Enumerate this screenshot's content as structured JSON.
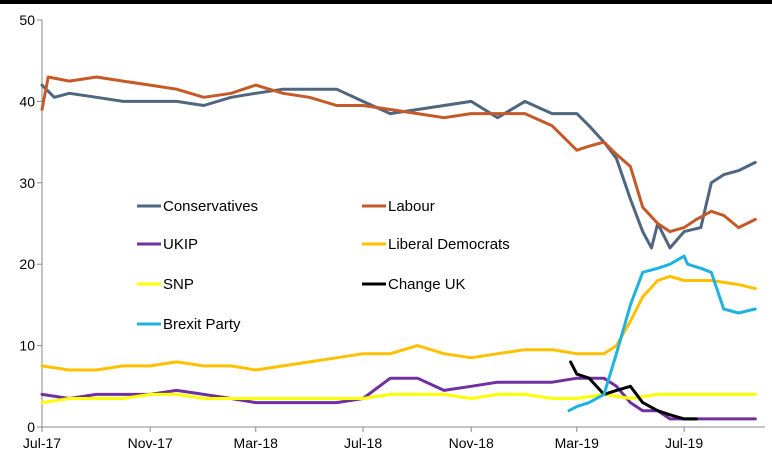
{
  "chart_data": {
    "type": "line",
    "title": "",
    "xlabel": "",
    "ylabel": "",
    "ylim": [
      0,
      50
    ],
    "yticks": [
      0,
      10,
      20,
      30,
      40,
      50
    ],
    "xlim": [
      "2017-07",
      "2019-10"
    ],
    "xtick_labels": [
      {
        "date": "2017-07",
        "label": "Jul-17"
      },
      {
        "date": "2017-11",
        "label": "Nov-17"
      },
      {
        "date": "2018-03",
        "label": "Mar-18"
      },
      {
        "date": "2018-07",
        "label": "Jul-18"
      },
      {
        "date": "2018-11",
        "label": "Nov-18"
      },
      {
        "date": "2019-03",
        "label": "Mar-19"
      },
      {
        "date": "2019-07",
        "label": "Jul-19"
      }
    ],
    "grid": false,
    "legend_position": "center",
    "series": [
      {
        "name": "Conservatives",
        "color": "#4F6680",
        "points": [
          [
            "2017-07-01",
            42
          ],
          [
            "2017-07-15",
            40.5
          ],
          [
            "2017-08-01",
            41
          ],
          [
            "2017-09-01",
            40.5
          ],
          [
            "2017-10-01",
            40
          ],
          [
            "2017-11-01",
            40
          ],
          [
            "2017-12-01",
            40
          ],
          [
            "2018-01-01",
            39.5
          ],
          [
            "2018-02-01",
            40.5
          ],
          [
            "2018-03-01",
            41
          ],
          [
            "2018-04-01",
            41.5
          ],
          [
            "2018-05-01",
            41.5
          ],
          [
            "2018-06-01",
            41.5
          ],
          [
            "2018-07-01",
            40
          ],
          [
            "2018-08-01",
            38.5
          ],
          [
            "2018-09-01",
            39
          ],
          [
            "2018-10-01",
            39.5
          ],
          [
            "2018-11-01",
            40
          ],
          [
            "2018-12-01",
            38
          ],
          [
            "2019-01-01",
            40
          ],
          [
            "2019-02-01",
            38.5
          ],
          [
            "2019-03-01",
            38.5
          ],
          [
            "2019-03-15",
            37
          ],
          [
            "2019-04-01",
            35
          ],
          [
            "2019-04-15",
            33
          ],
          [
            "2019-05-01",
            28
          ],
          [
            "2019-05-15",
            24
          ],
          [
            "2019-05-25",
            22
          ],
          [
            "2019-06-01",
            25
          ],
          [
            "2019-06-15",
            22
          ],
          [
            "2019-07-01",
            24
          ],
          [
            "2019-07-20",
            24.5
          ],
          [
            "2019-08-01",
            30
          ],
          [
            "2019-08-15",
            31
          ],
          [
            "2019-09-01",
            31.5
          ],
          [
            "2019-09-20",
            32.5
          ]
        ]
      },
      {
        "name": "Labour",
        "color": "#C55A28",
        "points": [
          [
            "2017-07-01",
            39
          ],
          [
            "2017-07-08",
            43
          ],
          [
            "2017-08-01",
            42.5
          ],
          [
            "2017-09-01",
            43
          ],
          [
            "2017-10-01",
            42.5
          ],
          [
            "2017-11-01",
            42
          ],
          [
            "2017-12-01",
            41.5
          ],
          [
            "2018-01-01",
            40.5
          ],
          [
            "2018-02-01",
            41
          ],
          [
            "2018-03-01",
            42
          ],
          [
            "2018-04-01",
            41
          ],
          [
            "2018-05-01",
            40.5
          ],
          [
            "2018-06-01",
            39.5
          ],
          [
            "2018-07-01",
            39.5
          ],
          [
            "2018-08-01",
            39
          ],
          [
            "2018-09-01",
            38.5
          ],
          [
            "2018-10-01",
            38
          ],
          [
            "2018-11-01",
            38.5
          ],
          [
            "2018-12-01",
            38.5
          ],
          [
            "2019-01-01",
            38.5
          ],
          [
            "2019-02-01",
            37
          ],
          [
            "2019-03-01",
            34
          ],
          [
            "2019-03-15",
            34.5
          ],
          [
            "2019-04-01",
            35
          ],
          [
            "2019-04-15",
            33.5
          ],
          [
            "2019-05-01",
            32
          ],
          [
            "2019-05-15",
            27
          ],
          [
            "2019-06-01",
            25
          ],
          [
            "2019-06-15",
            24
          ],
          [
            "2019-07-01",
            24.5
          ],
          [
            "2019-07-15",
            25.5
          ],
          [
            "2019-08-01",
            26.5
          ],
          [
            "2019-08-15",
            26
          ],
          [
            "2019-09-01",
            24.5
          ],
          [
            "2019-09-20",
            25.5
          ]
        ]
      },
      {
        "name": "UKIP",
        "color": "#7030A0",
        "points": [
          [
            "2017-07-01",
            4
          ],
          [
            "2017-08-01",
            3.5
          ],
          [
            "2017-09-01",
            4
          ],
          [
            "2017-10-01",
            4
          ],
          [
            "2017-11-01",
            4
          ],
          [
            "2017-12-01",
            4.5
          ],
          [
            "2018-01-01",
            4
          ],
          [
            "2018-02-01",
            3.5
          ],
          [
            "2018-03-01",
            3
          ],
          [
            "2018-04-01",
            3
          ],
          [
            "2018-05-01",
            3
          ],
          [
            "2018-06-01",
            3
          ],
          [
            "2018-07-01",
            3.5
          ],
          [
            "2018-08-01",
            6
          ],
          [
            "2018-09-01",
            6
          ],
          [
            "2018-10-01",
            4.5
          ],
          [
            "2018-11-01",
            5
          ],
          [
            "2018-12-01",
            5.5
          ],
          [
            "2019-01-01",
            5.5
          ],
          [
            "2019-02-01",
            5.5
          ],
          [
            "2019-03-01",
            6
          ],
          [
            "2019-04-01",
            6
          ],
          [
            "2019-04-15",
            5
          ],
          [
            "2019-05-01",
            3
          ],
          [
            "2019-05-15",
            2
          ],
          [
            "2019-06-01",
            2
          ],
          [
            "2019-06-15",
            1
          ],
          [
            "2019-07-01",
            1
          ],
          [
            "2019-08-01",
            1
          ],
          [
            "2019-09-20",
            1
          ]
        ]
      },
      {
        "name": "Liberal Democrats",
        "color": "#FFC000",
        "points": [
          [
            "2017-07-01",
            7.5
          ],
          [
            "2017-08-01",
            7
          ],
          [
            "2017-09-01",
            7
          ],
          [
            "2017-10-01",
            7.5
          ],
          [
            "2017-11-01",
            7.5
          ],
          [
            "2017-12-01",
            8
          ],
          [
            "2018-01-01",
            7.5
          ],
          [
            "2018-02-01",
            7.5
          ],
          [
            "2018-03-01",
            7
          ],
          [
            "2018-04-01",
            7.5
          ],
          [
            "2018-05-01",
            8
          ],
          [
            "2018-06-01",
            8.5
          ],
          [
            "2018-07-01",
            9
          ],
          [
            "2018-08-01",
            9
          ],
          [
            "2018-09-01",
            10
          ],
          [
            "2018-10-01",
            9
          ],
          [
            "2018-11-01",
            8.5
          ],
          [
            "2018-12-01",
            9
          ],
          [
            "2019-01-01",
            9.5
          ],
          [
            "2019-02-01",
            9.5
          ],
          [
            "2019-03-01",
            9
          ],
          [
            "2019-04-01",
            9
          ],
          [
            "2019-04-15",
            10
          ],
          [
            "2019-05-01",
            13
          ],
          [
            "2019-05-15",
            16
          ],
          [
            "2019-06-01",
            18
          ],
          [
            "2019-06-15",
            18.5
          ],
          [
            "2019-07-01",
            18
          ],
          [
            "2019-08-01",
            18
          ],
          [
            "2019-09-01",
            17.5
          ],
          [
            "2019-09-20",
            17
          ]
        ]
      },
      {
        "name": "SNP",
        "color": "#FFFF00",
        "points": [
          [
            "2017-07-01",
            3
          ],
          [
            "2017-08-01",
            3.5
          ],
          [
            "2017-09-01",
            3.5
          ],
          [
            "2017-10-01",
            3.5
          ],
          [
            "2017-11-01",
            4
          ],
          [
            "2017-12-01",
            4
          ],
          [
            "2018-01-01",
            3.5
          ],
          [
            "2018-02-01",
            3.5
          ],
          [
            "2018-03-01",
            3.5
          ],
          [
            "2018-04-01",
            3.5
          ],
          [
            "2018-05-01",
            3.5
          ],
          [
            "2018-06-01",
            3.5
          ],
          [
            "2018-07-01",
            3.5
          ],
          [
            "2018-08-01",
            4
          ],
          [
            "2018-09-01",
            4
          ],
          [
            "2018-10-01",
            4
          ],
          [
            "2018-11-01",
            3.5
          ],
          [
            "2018-12-01",
            4
          ],
          [
            "2019-01-01",
            4
          ],
          [
            "2019-02-01",
            3.5
          ],
          [
            "2019-03-01",
            3.5
          ],
          [
            "2019-04-01",
            4
          ],
          [
            "2019-05-01",
            3.5
          ],
          [
            "2019-06-01",
            4
          ],
          [
            "2019-07-01",
            4
          ],
          [
            "2019-08-01",
            4
          ],
          [
            "2019-09-01",
            4
          ],
          [
            "2019-09-20",
            4
          ]
        ]
      },
      {
        "name": "Change UK",
        "color": "#000000",
        "points": [
          [
            "2019-02-22",
            8
          ],
          [
            "2019-03-01",
            6.5
          ],
          [
            "2019-03-15",
            6
          ],
          [
            "2019-04-01",
            4
          ],
          [
            "2019-04-15",
            4.5
          ],
          [
            "2019-05-01",
            5
          ],
          [
            "2019-05-15",
            3
          ],
          [
            "2019-06-01",
            2
          ],
          [
            "2019-06-15",
            1.5
          ],
          [
            "2019-07-01",
            1
          ],
          [
            "2019-07-15",
            1
          ]
        ]
      },
      {
        "name": "Brexit Party",
        "color": "#1FB2E0",
        "points": [
          [
            "2019-02-20",
            2
          ],
          [
            "2019-03-01",
            2.5
          ],
          [
            "2019-03-15",
            3
          ],
          [
            "2019-04-01",
            4
          ],
          [
            "2019-04-15",
            9
          ],
          [
            "2019-05-01",
            15
          ],
          [
            "2019-05-15",
            19
          ],
          [
            "2019-06-01",
            19.5
          ],
          [
            "2019-06-15",
            20
          ],
          [
            "2019-07-01",
            21
          ],
          [
            "2019-07-05",
            20
          ],
          [
            "2019-07-20",
            19.5
          ],
          [
            "2019-08-01",
            19
          ],
          [
            "2019-08-15",
            14.5
          ],
          [
            "2019-09-01",
            14
          ],
          [
            "2019-09-20",
            14.5
          ]
        ]
      }
    ]
  }
}
